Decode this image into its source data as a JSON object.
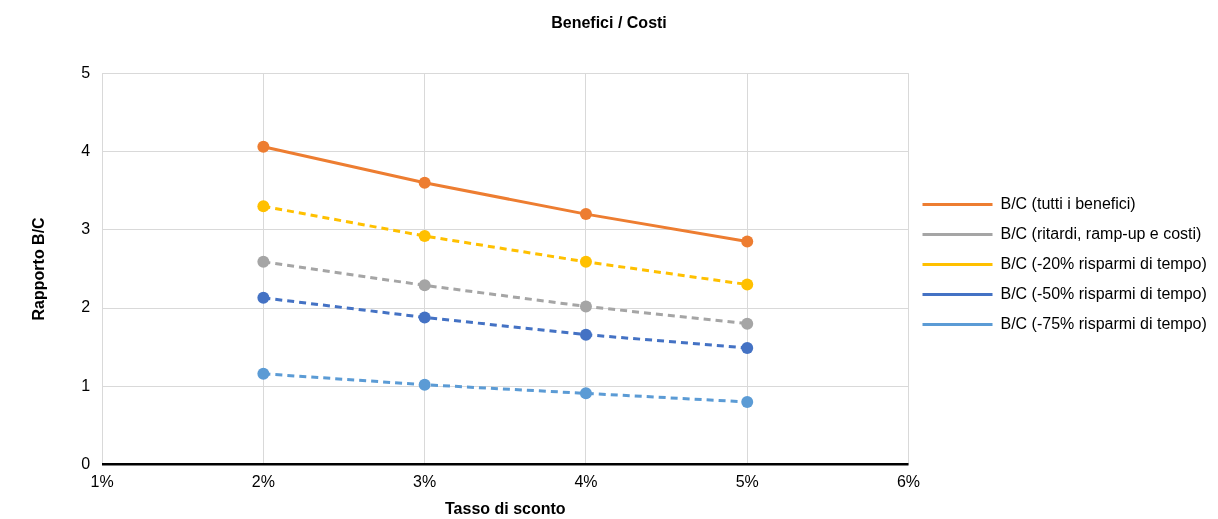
{
  "chart_data": {
    "type": "line",
    "title": "Benefici / Costi",
    "xlabel": "Tasso di sconto",
    "ylabel": "Rapporto B/C",
    "x": [
      2,
      3,
      4,
      5
    ],
    "xlim": [
      1,
      6
    ],
    "xticks": [
      {
        "value": 1,
        "label": "1%"
      },
      {
        "value": 2,
        "label": "2%"
      },
      {
        "value": 3,
        "label": "3%"
      },
      {
        "value": 4,
        "label": "4%"
      },
      {
        "value": 5,
        "label": "5%"
      },
      {
        "value": 6,
        "label": "6%"
      }
    ],
    "ylim": [
      0,
      5
    ],
    "yticks": [
      0,
      1,
      2,
      3,
      4,
      5
    ],
    "grid": true,
    "legend": "right",
    "marker": "circle",
    "series": [
      {
        "name": "B/C (tutti i benefici)",
        "color": "#ed7d31",
        "line_style": "solid",
        "values": [
          4.06,
          3.6,
          3.2,
          2.85
        ]
      },
      {
        "name": "B/C (ritardi, ramp-up e costi)",
        "color": "#a5a5a5",
        "line_style": "dashed",
        "values": [
          2.59,
          2.29,
          2.02,
          1.8
        ]
      },
      {
        "name": "B/C (-20% risparmi di tempo)",
        "color": "#ffc000",
        "line_style": "dashed",
        "values": [
          3.3,
          2.92,
          2.59,
          2.3
        ]
      },
      {
        "name": "B/C (-50% risparmi di tempo)",
        "color": "#4472c4",
        "line_style": "dashed",
        "values": [
          2.13,
          1.88,
          1.66,
          1.49
        ]
      },
      {
        "name": "B/C (-75% risparmi di tempo)",
        "color": "#5b9bd5",
        "line_style": "dashed",
        "values": [
          1.16,
          1.02,
          0.91,
          0.8
        ]
      }
    ]
  }
}
